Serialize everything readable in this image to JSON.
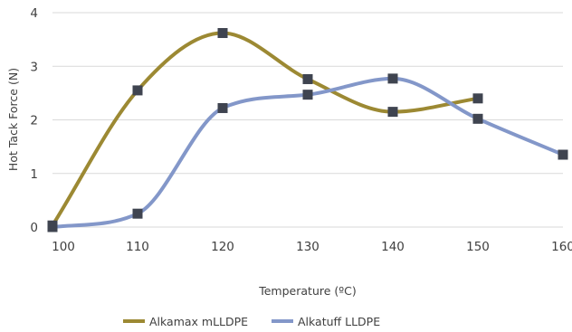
{
  "chart_data": {
    "type": "line",
    "xlabel": "Temperature (ºC)",
    "ylabel": "Hot Tack Force (N)",
    "xlim": [
      100,
      160
    ],
    "ylim": [
      0,
      4
    ],
    "x_ticks": [
      100,
      110,
      120,
      130,
      140,
      150,
      160
    ],
    "y_ticks": [
      0,
      1,
      2,
      3,
      4
    ],
    "grid": "horizontal",
    "legend_position": "bottom",
    "series": [
      {
        "name": "Alkamax mLLDPE",
        "color": "#9C8933",
        "x": [
          100,
          110,
          120,
          130,
          140,
          150
        ],
        "y": [
          0.03,
          2.55,
          3.62,
          2.76,
          2.15,
          2.4
        ]
      },
      {
        "name": "Alkatuff LLDPE",
        "color": "#8397C9",
        "x": [
          100,
          110,
          120,
          130,
          140,
          150,
          160
        ],
        "y": [
          0.0,
          0.25,
          2.22,
          2.47,
          2.77,
          2.02,
          1.35
        ]
      }
    ],
    "marker_color": "#3F4450"
  }
}
